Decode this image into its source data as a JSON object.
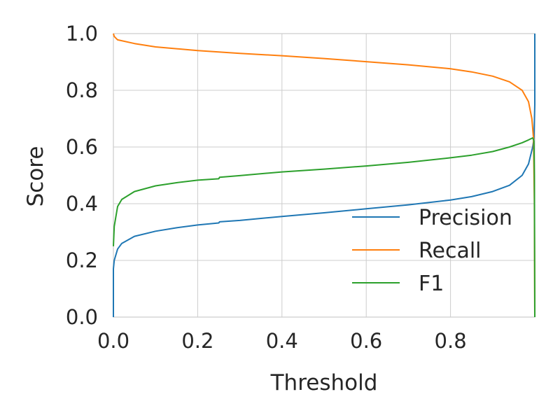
{
  "chart_data": {
    "type": "line",
    "xlabel": "Threshold",
    "ylabel": "Score",
    "xlim": [
      0.0,
      1.0
    ],
    "ylim": [
      0.0,
      1.0
    ],
    "xticks": [
      "0.0",
      "0.2",
      "0.4",
      "0.6",
      "0.8"
    ],
    "yticks": [
      "0.0",
      "0.2",
      "0.4",
      "0.6",
      "0.8",
      "1.0"
    ],
    "grid": true,
    "legend_position": "lower-right",
    "series": [
      {
        "name": "Precision",
        "color": "#1f77b4",
        "points": [
          [
            0.0,
            0.0
          ],
          [
            0.0,
            0.17
          ],
          [
            0.002,
            0.2
          ],
          [
            0.01,
            0.24
          ],
          [
            0.02,
            0.26
          ],
          [
            0.05,
            0.285
          ],
          [
            0.1,
            0.303
          ],
          [
            0.15,
            0.315
          ],
          [
            0.2,
            0.325
          ],
          [
            0.25,
            0.332
          ],
          [
            0.252,
            0.336
          ],
          [
            0.3,
            0.341
          ],
          [
            0.4,
            0.355
          ],
          [
            0.5,
            0.368
          ],
          [
            0.6,
            0.382
          ],
          [
            0.7,
            0.396
          ],
          [
            0.8,
            0.413
          ],
          [
            0.85,
            0.425
          ],
          [
            0.9,
            0.443
          ],
          [
            0.94,
            0.465
          ],
          [
            0.97,
            0.5
          ],
          [
            0.985,
            0.54
          ],
          [
            0.995,
            0.6
          ],
          [
            0.998,
            0.63
          ],
          [
            1.0,
            0.75
          ],
          [
            1.0,
            1.0
          ]
        ]
      },
      {
        "name": "Recall",
        "color": "#ff7f0e",
        "points": [
          [
            0.0,
            1.0
          ],
          [
            0.002,
            0.99
          ],
          [
            0.01,
            0.978
          ],
          [
            0.05,
            0.965
          ],
          [
            0.1,
            0.953
          ],
          [
            0.2,
            0.94
          ],
          [
            0.3,
            0.93
          ],
          [
            0.4,
            0.922
          ],
          [
            0.5,
            0.912
          ],
          [
            0.6,
            0.901
          ],
          [
            0.7,
            0.89
          ],
          [
            0.8,
            0.876
          ],
          [
            0.85,
            0.865
          ],
          [
            0.9,
            0.85
          ],
          [
            0.94,
            0.83
          ],
          [
            0.97,
            0.8
          ],
          [
            0.985,
            0.76
          ],
          [
            0.993,
            0.7
          ],
          [
            0.997,
            0.63
          ],
          [
            0.999,
            0.4
          ],
          [
            1.0,
            0.0
          ]
        ]
      },
      {
        "name": "F1",
        "color": "#2ca02c",
        "points": [
          [
            0.0,
            0.25
          ],
          [
            0.002,
            0.32
          ],
          [
            0.01,
            0.39
          ],
          [
            0.02,
            0.415
          ],
          [
            0.05,
            0.443
          ],
          [
            0.1,
            0.463
          ],
          [
            0.15,
            0.474
          ],
          [
            0.2,
            0.483
          ],
          [
            0.25,
            0.488
          ],
          [
            0.252,
            0.493
          ],
          [
            0.3,
            0.499
          ],
          [
            0.4,
            0.512
          ],
          [
            0.5,
            0.522
          ],
          [
            0.6,
            0.533
          ],
          [
            0.7,
            0.546
          ],
          [
            0.8,
            0.562
          ],
          [
            0.85,
            0.571
          ],
          [
            0.9,
            0.584
          ],
          [
            0.94,
            0.6
          ],
          [
            0.97,
            0.615
          ],
          [
            0.985,
            0.625
          ],
          [
            0.995,
            0.632
          ],
          [
            0.998,
            0.622
          ],
          [
            0.999,
            0.5
          ],
          [
            1.0,
            0.0
          ]
        ]
      }
    ]
  }
}
